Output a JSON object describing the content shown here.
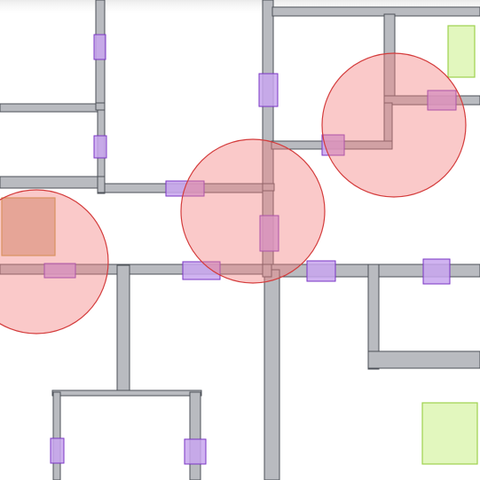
{
  "scene": {
    "kind": "top-down floor plan",
    "colors": {
      "background": "#ffffff",
      "wall_fill": "#b9bbc0",
      "wall_stroke": "#4d5158",
      "door_fill": "#c8a6ee",
      "door_stroke": "#7a36c4",
      "hazard_fill": "#f27f7f",
      "hazard_stroke": "#d43c3c",
      "goal_fill": "#e2f7be",
      "goal_stroke": "#9ed14e",
      "crate_fill": "#d7b79a",
      "crate_stroke": "#c8a24a"
    },
    "counts": {
      "walls": 25,
      "doors": 14,
      "hazard_zones": 3,
      "goal_zones": 2,
      "crates": 1
    }
  }
}
